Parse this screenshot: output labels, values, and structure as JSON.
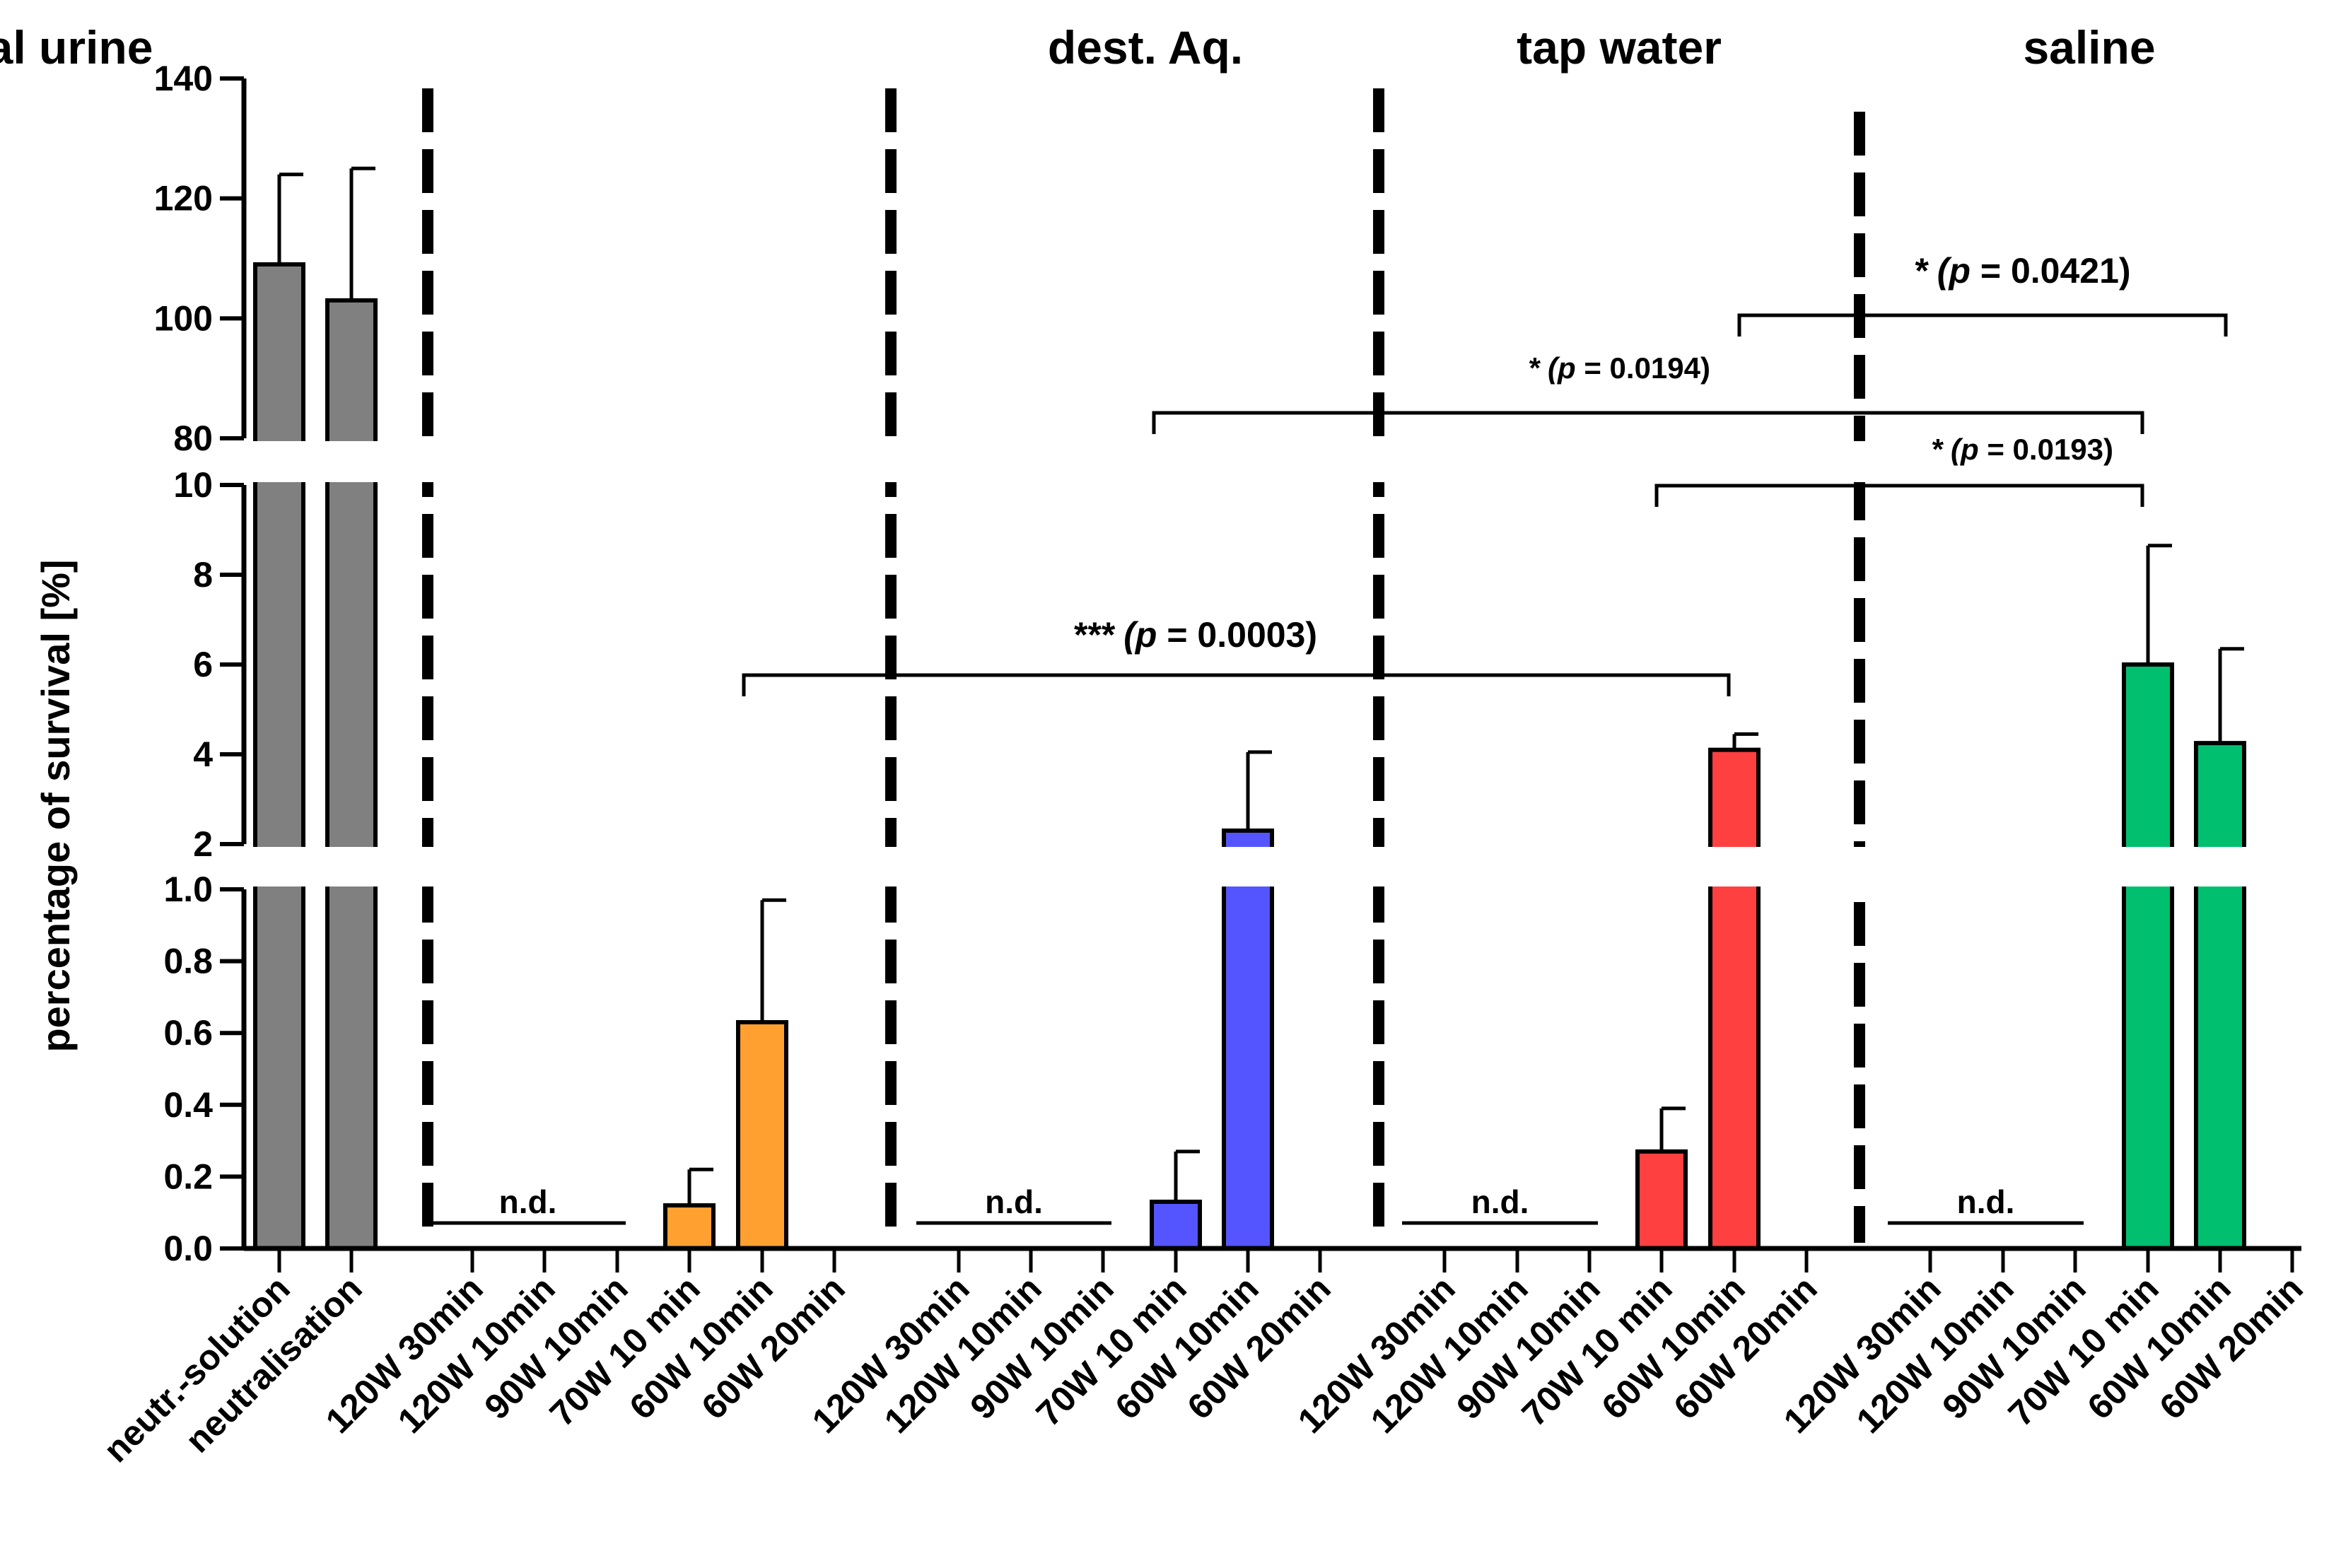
{
  "chart_data": {
    "type": "bar",
    "ylabel": "percentage of survival [%]",
    "ylim": [
      0,
      140
    ],
    "y_axis_segments": [
      {
        "range": [
          0.0,
          1.0
        ],
        "ticks": [
          "0.0",
          "0.2",
          "0.4",
          "0.6",
          "0.8",
          "1.0"
        ],
        "tick_values": [
          0,
          0.2,
          0.4,
          0.6,
          0.8,
          1.0
        ]
      },
      {
        "range": [
          2,
          10
        ],
        "ticks": [
          "2",
          "4",
          "6",
          "8",
          "10"
        ],
        "tick_values": [
          2,
          4,
          6,
          8,
          10
        ]
      },
      {
        "range": [
          80,
          140
        ],
        "ticks": [
          "80",
          "100",
          "120",
          "140"
        ],
        "tick_values": [
          80,
          100,
          120,
          140
        ]
      }
    ],
    "groups": [
      {
        "name": "",
        "color": "#808080",
        "categories": [
          "neutr.-solution",
          "neutralisation"
        ],
        "values": [
          109,
          103
        ],
        "errors": [
          124,
          125
        ]
      },
      {
        "name": "dest. Aq.",
        "color": "#FFA030",
        "categories": [
          "120W 30min",
          "120W 10min",
          "90W 10min",
          "70W 10 min",
          "60W 10min",
          "60W 20min"
        ],
        "values": [
          0,
          0,
          0,
          0.12,
          0.63,
          0
        ],
        "errors": [
          null,
          null,
          null,
          0.22,
          0.97,
          null
        ]
      },
      {
        "name": "tap water",
        "color": "#5555FF",
        "categories": [
          "120W 30min",
          "120W 10min",
          "90W 10min",
          "70W 10 min",
          "60W 10min",
          "60W 20min"
        ],
        "values": [
          0,
          0,
          0,
          0.13,
          2.3,
          0
        ],
        "errors": [
          null,
          null,
          null,
          0.27,
          4.05,
          null
        ]
      },
      {
        "name": "saline",
        "color": "#FF4040",
        "categories": [
          "120W 30min",
          "120W 10min",
          "90W 10min",
          "70W 10 min",
          "60W 10min",
          "60W 20min"
        ],
        "values": [
          0,
          0,
          0,
          0.27,
          4.1,
          0
        ],
        "errors": [
          null,
          null,
          null,
          0.39,
          4.45,
          null
        ]
      },
      {
        "name": "artificial urine",
        "color": "#00C070",
        "categories": [
          "120W 30min",
          "120W 10min",
          "90W 10min",
          "70W 10 min",
          "60W 10min",
          "60W 20min"
        ],
        "values": [
          0,
          0,
          0,
          6.0,
          4.25,
          0
        ],
        "errors": [
          null,
          null,
          null,
          8.65,
          6.35,
          null
        ]
      }
    ],
    "nd_label": "n.d.",
    "significance": [
      {
        "stars": "***",
        "p_text": "0.0003",
        "from": "dest. Aq. 60W 10min",
        "to": "saline 60W 10min"
      },
      {
        "stars": "*",
        "p_text": "0.0194",
        "from": "tap water 70W 10 min",
        "to": "artificial urine 70W 10 min"
      },
      {
        "stars": "*",
        "p_text": "0.0193",
        "from": "saline 70W 10 min",
        "to": "artificial urine 70W 10 min"
      },
      {
        "stars": "*",
        "p_text": "0.0421",
        "from": "saline 60W 10min",
        "to": "artificial urine 60W 10min"
      }
    ]
  }
}
